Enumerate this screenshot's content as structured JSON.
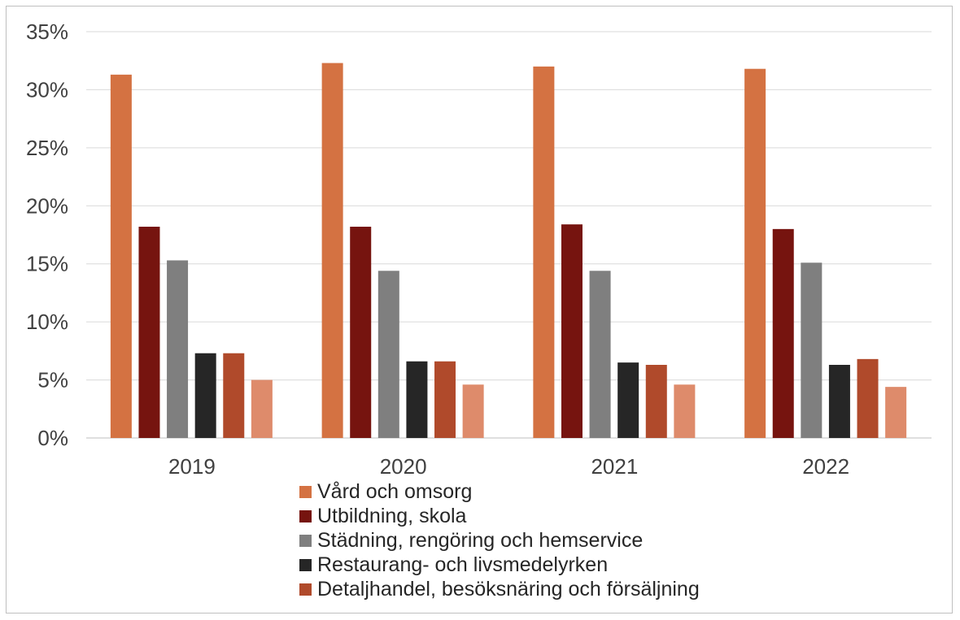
{
  "chart_data": {
    "type": "bar",
    "categories": [
      "2019",
      "2020",
      "2021",
      "2022"
    ],
    "yticks": [
      "0%",
      "5%",
      "10%",
      "15%",
      "20%",
      "25%",
      "30%",
      "35%"
    ],
    "ylim": [
      0,
      35
    ],
    "grid": true,
    "legend_position": "bottom",
    "series": [
      {
        "name": "Vård och omsorg",
        "color": "#d47242",
        "values": [
          31.3,
          32.3,
          32.0,
          31.8
        ]
      },
      {
        "name": "Utbildning, skola",
        "color": "#76140f",
        "values": [
          18.2,
          18.2,
          18.4,
          18.0
        ]
      },
      {
        "name": "Städning, rengöring och hemservice",
        "color": "#7f7f7f",
        "values": [
          15.3,
          14.4,
          14.4,
          15.1
        ]
      },
      {
        "name": "Restaurang- och livsmedelyrken",
        "color": "#262626",
        "values": [
          7.3,
          6.6,
          6.5,
          6.3
        ]
      },
      {
        "name": "Detaljhandel, besöksnäring och försäljning",
        "color": "#b04a2b",
        "values": [
          7.3,
          6.6,
          6.3,
          6.8
        ]
      },
      {
        "color": "#de8b6b",
        "values": [
          5.0,
          4.6,
          4.6,
          4.4
        ]
      }
    ]
  }
}
